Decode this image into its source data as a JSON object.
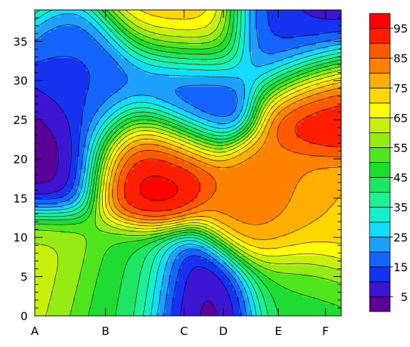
{
  "chart_data": {
    "type": "heatmap",
    "subtype": "filled-contour",
    "title": "",
    "xlabel": "",
    "ylabel": "",
    "x_tick_labels": [
      "A",
      "B",
      "C",
      "D",
      "E",
      "F"
    ],
    "x_tick_positions": [
      0,
      9,
      19,
      24,
      31,
      37
    ],
    "xlim": [
      0,
      39
    ],
    "ylim": [
      0,
      39
    ],
    "y_ticks": [
      0,
      5,
      10,
      15,
      20,
      25,
      30,
      35
    ],
    "colorbar": {
      "levels": [
        0,
        5,
        10,
        15,
        20,
        25,
        30,
        35,
        40,
        45,
        50,
        55,
        60,
        65,
        70,
        75,
        80,
        85,
        90,
        95,
        100
      ],
      "tick_labels": [
        "5",
        "15",
        "25",
        "35",
        "45",
        "55",
        "65",
        "75",
        "85",
        "95"
      ],
      "colors": [
        "#5a0096",
        "#3c14d2",
        "#1432f0",
        "#1464ff",
        "#1ea0ff",
        "#14dcff",
        "#14f0c8",
        "#1ef096",
        "#1ee664",
        "#1edc32",
        "#50e61e",
        "#96eb14",
        "#c8f00a",
        "#ffff00",
        "#ffd700",
        "#ffaf00",
        "#ff8200",
        "#ff5a00",
        "#ff1e00",
        "#ff0000"
      ]
    },
    "features": [
      {
        "x": 14.5,
        "y": 20.0,
        "value": 99
      },
      {
        "x": 30.0,
        "y": 13.5,
        "value": 84
      },
      {
        "x": 37.5,
        "y": 12.0,
        "value": 74
      },
      {
        "x": 38.0,
        "y": 28.0,
        "value": 96
      },
      {
        "x": 19.0,
        "y": 37.0,
        "value": 78
      },
      {
        "x": 1.5,
        "y": 21.0,
        "value": 1
      },
      {
        "x": 21.0,
        "y": 1.5,
        "value": 2
      },
      {
        "x": 37.0,
        "y": 37.0,
        "value": 2
      },
      {
        "x": 32.0,
        "y": 37.0,
        "value": 14
      },
      {
        "x": 18.5,
        "y": 29.0,
        "value": 5
      },
      {
        "x": 7.5,
        "y": 28.5,
        "value": 14
      },
      {
        "x": 1.0,
        "y": 5.5,
        "value": 62
      },
      {
        "x": 11.0,
        "y": 3.0,
        "value": 46
      },
      {
        "x": 34.0,
        "y": 3.0,
        "value": 48
      }
    ],
    "background_value": 56
  }
}
